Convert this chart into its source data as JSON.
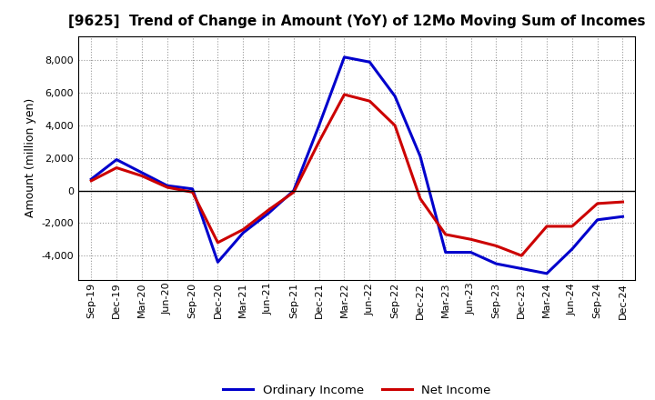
{
  "title": "[9625]  Trend of Change in Amount (YoY) of 12Mo Moving Sum of Incomes",
  "ylabel": "Amount (million yen)",
  "x_labels": [
    "Sep-19",
    "Dec-19",
    "Mar-20",
    "Jun-20",
    "Sep-20",
    "Dec-20",
    "Mar-21",
    "Jun-21",
    "Sep-21",
    "Dec-21",
    "Mar-22",
    "Jun-22",
    "Sep-22",
    "Dec-22",
    "Mar-23",
    "Jun-23",
    "Sep-23",
    "Dec-23",
    "Mar-24",
    "Jun-24",
    "Sep-24",
    "Dec-24"
  ],
  "ordinary_income": [
    700,
    1900,
    1100,
    300,
    100,
    -4400,
    -2600,
    -1400,
    0,
    4000,
    8200,
    7900,
    5800,
    2100,
    -3800,
    -3800,
    -4500,
    -4800,
    -5100,
    -3600,
    -1800,
    -1600
  ],
  "net_income": [
    600,
    1400,
    900,
    200,
    -100,
    -3200,
    -2400,
    -1200,
    -100,
    3000,
    5900,
    5500,
    4000,
    -500,
    -2700,
    -3000,
    -3400,
    -4000,
    -2200,
    -2200,
    -800,
    -700
  ],
  "ordinary_color": "#0000cc",
  "net_color": "#cc0000",
  "background_color": "#ffffff",
  "grid_color": "#999999",
  "ylim": [
    -5500,
    9500
  ],
  "yticks": [
    -4000,
    -2000,
    0,
    2000,
    4000,
    6000,
    8000
  ],
  "legend_labels": [
    "Ordinary Income",
    "Net Income"
  ],
  "line_width": 2.2,
  "title_fontsize": 11,
  "ylabel_fontsize": 9,
  "tick_fontsize": 8
}
